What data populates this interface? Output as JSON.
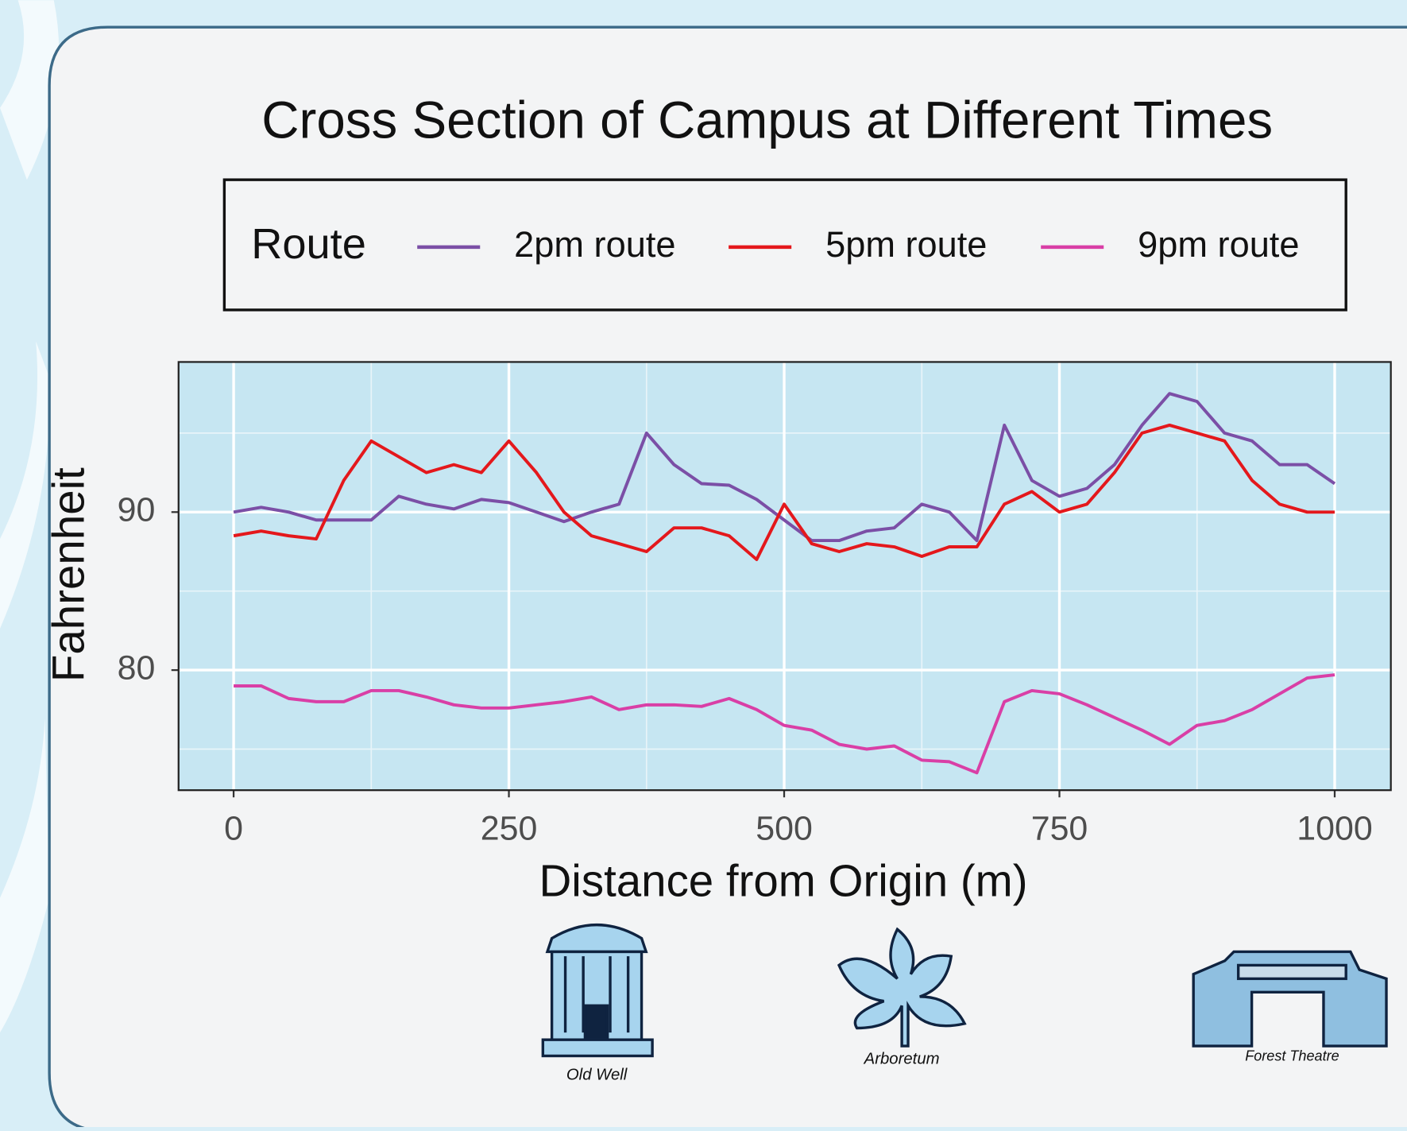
{
  "chart_data": {
    "type": "line",
    "title": "Cross Section of Campus at Different Times",
    "x_label": "Distance from Origin (m)",
    "y_label": "Fahrenheit",
    "legend_title": "Route",
    "x": [
      0,
      25,
      50,
      75,
      100,
      125,
      150,
      175,
      200,
      225,
      250,
      275,
      300,
      325,
      350,
      375,
      400,
      425,
      450,
      475,
      500,
      525,
      550,
      575,
      600,
      625,
      650,
      675,
      700,
      725,
      750,
      775,
      800,
      825,
      850,
      875,
      900,
      925,
      950,
      975,
      1000
    ],
    "series": [
      {
        "name": "2pm route",
        "color": "#7b4fa6",
        "values": [
          90,
          90.3,
          90,
          89.5,
          89.5,
          89.5,
          91,
          90.5,
          90.2,
          90.8,
          90.6,
          90,
          89.4,
          90,
          90.5,
          95,
          93,
          91.8,
          91.7,
          90.8,
          89.5,
          88.2,
          88.2,
          88.8,
          89,
          90.5,
          90,
          88.2,
          95.5,
          92,
          91,
          91.5,
          93,
          95.5,
          97.5,
          97,
          95,
          94.5,
          93,
          93,
          91.8
        ]
      },
      {
        "name": "5pm route",
        "color": "#e4181c",
        "values": [
          88.5,
          88.8,
          88.5,
          88.3,
          92,
          94.5,
          93.5,
          92.5,
          93,
          92.5,
          94.5,
          92.5,
          90,
          88.5,
          88,
          87.5,
          89,
          89,
          88.5,
          87,
          90.5,
          88,
          87.5,
          88,
          87.8,
          87.2,
          87.8,
          87.8,
          90.5,
          91.3,
          90,
          90.5,
          92.5,
          95,
          95.5,
          95,
          94.5,
          92,
          90.5,
          90,
          90
        ]
      },
      {
        "name": "9pm route",
        "color": "#d93fa6",
        "values": [
          79,
          79,
          78.2,
          78,
          78,
          78.7,
          78.7,
          78.3,
          77.8,
          77.6,
          77.6,
          77.8,
          78,
          78.3,
          77.5,
          77.8,
          77.8,
          77.7,
          78.2,
          77.5,
          76.5,
          76.2,
          75.3,
          75,
          75.2,
          74.3,
          74.2,
          73.5,
          78,
          78.7,
          78.5,
          77.8,
          77,
          76.2,
          75.3,
          76.5,
          76.8,
          77.5,
          78.5,
          79.5,
          79.7
        ]
      }
    ],
    "xlim": [
      -50,
      1051
    ],
    "ylim": [
      72.4,
      99.5
    ],
    "xticks": [
      0,
      250,
      500,
      750,
      1000
    ],
    "yticks": [
      80,
      90
    ],
    "grid": true,
    "minor_grid": true,
    "plot_background": "#c6e6f2",
    "annotations": [
      "Old Well",
      "Arboretum",
      "Forest Theatre"
    ]
  }
}
